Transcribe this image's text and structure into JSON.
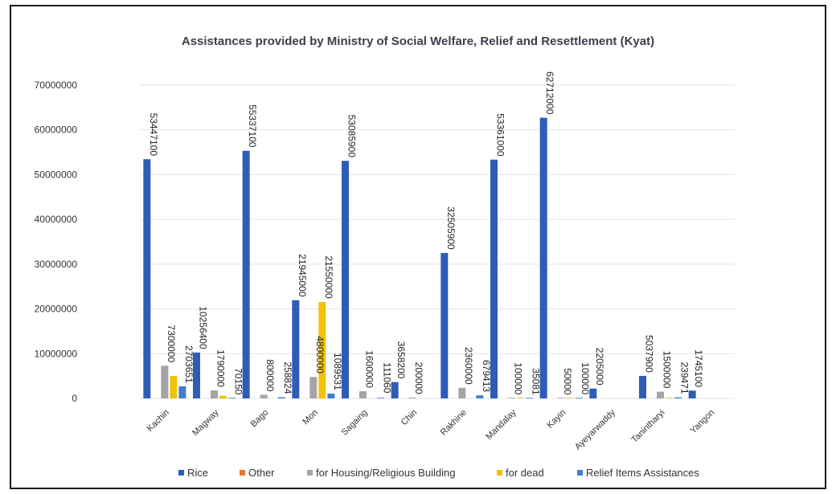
{
  "chart_data": {
    "type": "bar",
    "title": "Assistances provided by Ministry of Social Welfare, Relief and Resettlement (Kyat)",
    "xlabel": "",
    "ylabel": "",
    "ylim": [
      0,
      70000000
    ],
    "yticks": [
      "0",
      "10000000",
      "20000000",
      "30000000",
      "40000000",
      "50000000",
      "60000000",
      "70000000"
    ],
    "grid": true,
    "legend_position": "bottom",
    "categories": [
      "Kachin",
      "Magway",
      "Bago",
      "Mon",
      "Sagaing",
      "Chin",
      "Rakhine",
      "Mandalay",
      "Kayin",
      "Ayeyarwaddy",
      "Tanintharyi",
      "Yangon"
    ],
    "series": [
      {
        "name": "Rice",
        "color": "#2f5cb8",
        "values": [
          53447100,
          10256400,
          55337100,
          21945000,
          53085900,
          3658200,
          32505900,
          53361000,
          62712000,
          2205000,
          5037900,
          1745100
        ],
        "labels": [
          "53447100",
          "10256400",
          "55337100",
          "21945000",
          "53085900",
          "3658200",
          "32505900",
          "53361000",
          "62712000",
          "2205000",
          "5037900",
          "1745100"
        ]
      },
      {
        "name": "Other",
        "color": "#e8762c",
        "values": [
          null,
          null,
          null,
          null,
          null,
          null,
          null,
          null,
          null,
          null,
          null,
          null
        ],
        "labels": [
          "",
          "",
          "",
          "",
          "",
          "",
          "",
          "",
          "",
          "",
          "",
          ""
        ]
      },
      {
        "name": "for Housing/Religious Building",
        "color": "#a5a5a5",
        "values": [
          7300000,
          1790000,
          800000,
          4800000,
          1600000,
          200000,
          2360000,
          100000,
          50000,
          null,
          1500000,
          null
        ],
        "labels": [
          "7300000",
          "1790000",
          "800000",
          "4800000",
          "1600000",
          "200000",
          "2360000",
          "100000",
          "50000",
          "",
          "1500000",
          ""
        ]
      },
      {
        "name": "for dead",
        "color": "#f2c10c",
        "values": [
          5000000,
          600000,
          null,
          21550000,
          null,
          null,
          null,
          100000,
          100000,
          null,
          100000,
          null
        ],
        "labels": [
          "",
          "",
          "",
          "21550000",
          "",
          "",
          "",
          "",
          "",
          "",
          "",
          ""
        ]
      },
      {
        "name": "Relief Items Assistances",
        "color": "#3f7fd0",
        "values": [
          2703651,
          70150,
          258824,
          1089531,
          111060,
          null,
          679413,
          35081,
          100000,
          null,
          239471,
          null
        ],
        "labels": [
          "2703651",
          "70150",
          "258824",
          "1089531",
          "111060",
          "",
          "679413",
          "35081",
          "100000",
          "",
          "239471",
          ""
        ]
      }
    ]
  }
}
